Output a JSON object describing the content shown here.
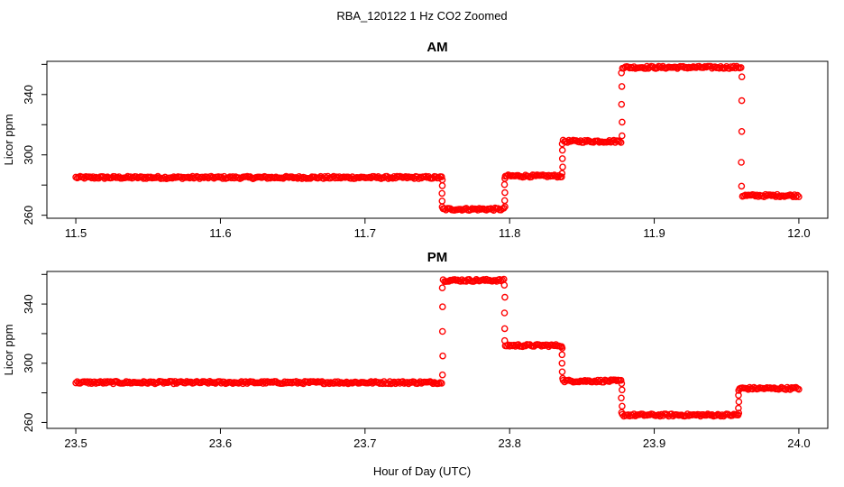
{
  "figure": {
    "title": "RBA_120122  1 Hz CO2 Zoomed",
    "xlabel": "Hour of Day (UTC)"
  },
  "chart_data": [
    {
      "type": "scatter",
      "title": "AM",
      "ylabel": "Licor ppm",
      "xlim": [
        11.48,
        12.02
      ],
      "ylim": [
        258,
        362
      ],
      "x_ticks": [
        11.5,
        11.6,
        11.7,
        11.8,
        11.9,
        12.0
      ],
      "x_tick_labels": [
        "11.5",
        "11.6",
        "11.7",
        "11.8",
        "11.9",
        "12.0"
      ],
      "y_ticks": [
        260,
        300,
        340
      ],
      "y_tick_labels": [
        "260",
        "300",
        "340"
      ],
      "marker": "open-circle",
      "color": "#ff0000",
      "segments": [
        {
          "x": [
            11.5,
            11.753
          ],
          "y": 285
        },
        {
          "x": [
            11.754,
            11.796
          ],
          "y": 264
        },
        {
          "x": [
            11.797,
            11.836
          ],
          "y": 286
        },
        {
          "x": [
            11.837,
            11.877
          ],
          "y": 309
        },
        {
          "x": [
            11.878,
            11.96
          ],
          "y": 358
        },
        {
          "x": [
            11.961,
            12.0
          ],
          "y": 273
        }
      ],
      "transitions": [
        {
          "x": 11.7535,
          "y": [
            285,
            264
          ]
        },
        {
          "x": 11.7965,
          "y": [
            264,
            286
          ]
        },
        {
          "x": 11.8365,
          "y": [
            286,
            309
          ]
        },
        {
          "x": 11.8775,
          "y": [
            309,
            358
          ]
        },
        {
          "x": 11.9605,
          "y": [
            358,
            273
          ]
        }
      ]
    },
    {
      "type": "scatter",
      "title": "PM",
      "ylabel": "Licor ppm",
      "xlim": [
        23.48,
        24.02
      ],
      "ylim": [
        256,
        362
      ],
      "x_ticks": [
        23.5,
        23.6,
        23.7,
        23.8,
        23.9,
        24.0
      ],
      "x_tick_labels": [
        "23.5",
        "23.6",
        "23.7",
        "23.8",
        "23.9",
        "24.0"
      ],
      "y_ticks": [
        260,
        300,
        340
      ],
      "y_tick_labels": [
        "260",
        "300",
        "340"
      ],
      "marker": "open-circle",
      "color": "#ff0000",
      "segments": [
        {
          "x": [
            23.5,
            23.753
          ],
          "y": 287
        },
        {
          "x": [
            23.754,
            23.796
          ],
          "y": 356
        },
        {
          "x": [
            23.797,
            23.836
          ],
          "y": 312
        },
        {
          "x": [
            23.837,
            23.877
          ],
          "y": 288
        },
        {
          "x": [
            23.878,
            23.958
          ],
          "y": 265
        },
        {
          "x": [
            23.959,
            24.0
          ],
          "y": 283
        }
      ],
      "transitions": [
        {
          "x": 23.7535,
          "y": [
            287,
            356
          ]
        },
        {
          "x": 23.7965,
          "y": [
            356,
            312
          ]
        },
        {
          "x": 23.8365,
          "y": [
            312,
            288
          ]
        },
        {
          "x": 23.8775,
          "y": [
            288,
            265
          ]
        },
        {
          "x": 23.9585,
          "y": [
            265,
            283
          ]
        }
      ]
    }
  ]
}
